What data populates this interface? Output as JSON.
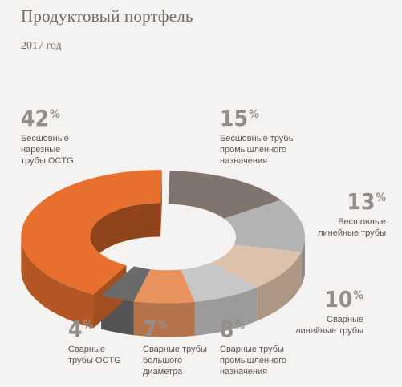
{
  "header": {
    "title": "Продуктовый портфель",
    "subtitle": "2017 год"
  },
  "chart_data": {
    "type": "pie",
    "style": "3d-donut",
    "title": "Продуктовый портфель",
    "subtitle": "2017 год",
    "categories": [
      "Бесшовные трубы промышленного назначения",
      "Бесшовные линейные трубы",
      "Сварные линейные трубы",
      "Сварные трубы промышленного назначения",
      "Сварные трубы большого диаметра",
      "Сварные трубы OCTG",
      "Бесшовные нарезные трубы OCTG"
    ],
    "values": [
      15,
      13,
      10,
      8,
      7,
      4,
      42
    ],
    "colors": [
      "#80746e",
      "#b3b3b3",
      "#dcc2ab",
      "#c7c7c7",
      "#e8935e",
      "#6a6a6a",
      "#e8702f"
    ]
  },
  "labels": [
    {
      "num": "42",
      "pc": "%",
      "desc": [
        "Бесшовные",
        "нарезные",
        "трубы OCTG"
      ]
    },
    {
      "num": "15",
      "pc": "%",
      "desc": [
        "Бесшовные трубы",
        "промышленного",
        "назначения"
      ]
    },
    {
      "num": "13",
      "pc": "%",
      "desc": [
        "Бесшовные",
        "линейные трубы"
      ]
    },
    {
      "num": "10",
      "pc": "%",
      "desc": [
        "Сварные",
        "линейные трубы"
      ]
    },
    {
      "num": "8",
      "pc": "%",
      "desc": [
        "Сварные трубы",
        "промышленного",
        "назначения"
      ]
    },
    {
      "num": "7",
      "pc": "%",
      "desc": [
        "Сварные трубы",
        "большого",
        "диаметра"
      ]
    },
    {
      "num": "4",
      "pc": "%",
      "desc": [
        "Сварные",
        "трубы OCTG"
      ]
    }
  ]
}
